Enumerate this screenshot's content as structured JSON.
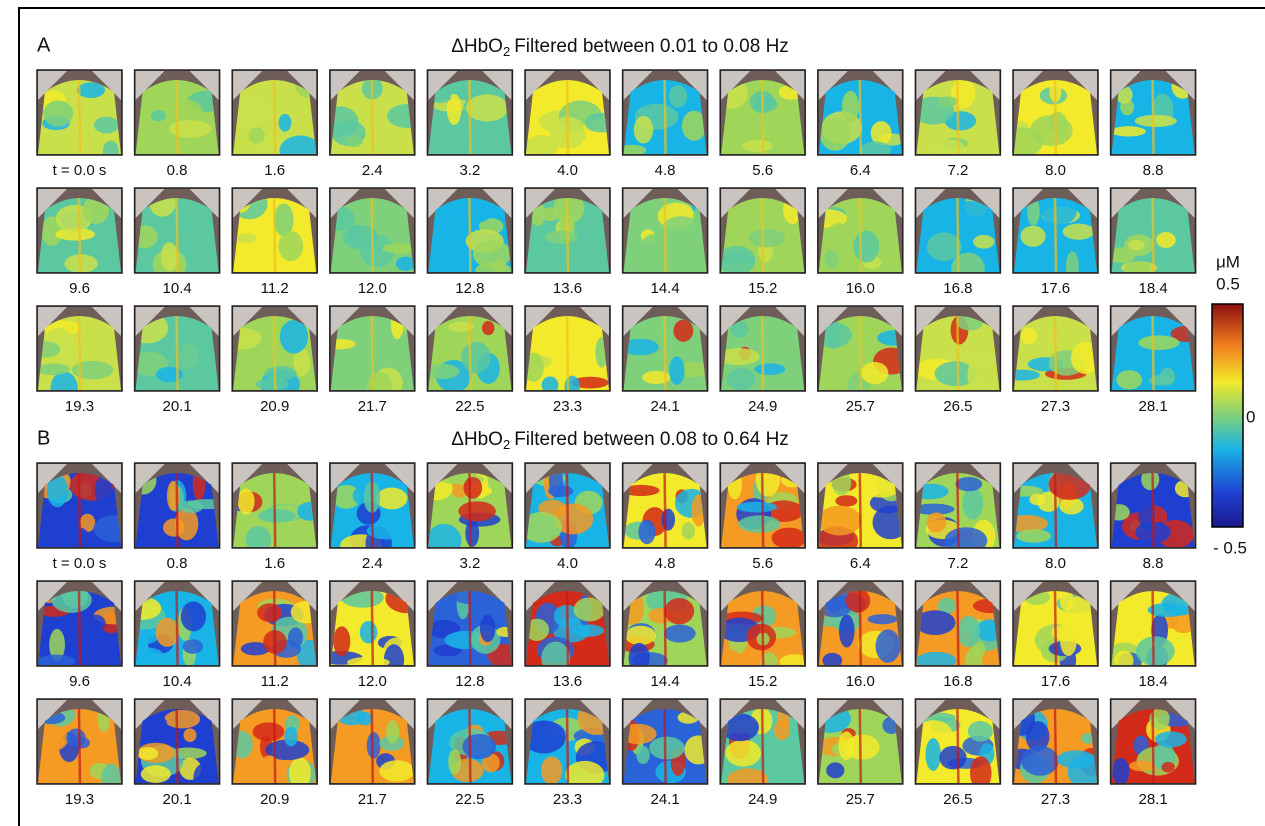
{
  "panels": [
    {
      "label": "A",
      "title": {
        "prefix": "ΔHbO",
        "subscript": "2",
        "text": "Filtered between 0.01 to 0.08 Hz"
      },
      "times": [
        "t = 0.0 s",
        "0.8",
        "1.6",
        "2.4",
        "3.2",
        "4.0",
        "4.8",
        "5.6",
        "6.4",
        "7.2",
        "8.0",
        "8.8",
        "9.6",
        "10.4",
        "11.2",
        "12.0",
        "12.8",
        "13.6",
        "14.4",
        "15.2",
        "16.0",
        "16.8",
        "17.6",
        "18.4",
        "19.3",
        "20.1",
        "20.9",
        "21.7",
        "22.5",
        "23.3",
        "24.1",
        "24.9",
        "25.7",
        "26.5",
        "27.3",
        "28.1"
      ]
    },
    {
      "label": "B",
      "title": {
        "prefix": "ΔHbO",
        "subscript": "2",
        "text": "Filtered between 0.08 to 0.64 Hz"
      },
      "times": [
        "t = 0.0 s",
        "0.8",
        "1.6",
        "2.4",
        "3.2",
        "4.0",
        "4.8",
        "5.6",
        "6.4",
        "7.2",
        "8.0",
        "8.8",
        "9.6",
        "10.4",
        "11.2",
        "12.0",
        "12.8",
        "13.6",
        "14.4",
        "15.2",
        "16.0",
        "16.8",
        "17.6",
        "18.4",
        "19.3",
        "20.1",
        "20.9",
        "21.7",
        "22.5",
        "23.3",
        "24.1",
        "24.9",
        "25.7",
        "26.5",
        "27.3",
        "28.1"
      ]
    }
  ],
  "colorbar": {
    "unit": "μM",
    "max_label": "0.5",
    "mid_label": "0",
    "min_label": "- 0.5"
  }
}
